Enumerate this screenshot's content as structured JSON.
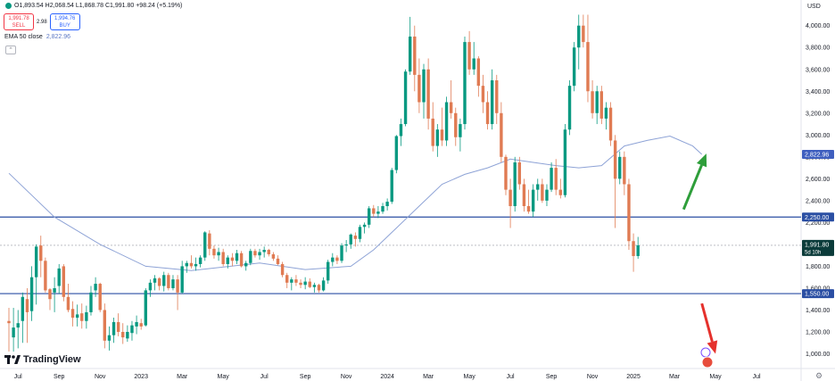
{
  "header": {
    "ohlc_text": "O1,893.54 H2,068.54 L1,868.78 C1,991.80 +98.24 (+5.19%)",
    "sell_price": "1,991.78",
    "sell_label": "SELL",
    "spread": "2.98",
    "buy_price": "1,994.76",
    "buy_label": "BUY",
    "ema_label": "EMA 50 close",
    "ema_value": "2,822.96",
    "collapse_glyph": "^"
  },
  "logo": {
    "text": "TradingView",
    "icon": "tradingview-logo-icon"
  },
  "settings_icon": "gear-icon",
  "colors": {
    "up": "#089981",
    "down": "#e07b53",
    "ema": "#8ea3d6",
    "hline": "#2a4ea3",
    "arrow_up": "#2e9e3a",
    "arrow_down": "#e5312c",
    "axis_text": "#131722"
  },
  "chart_data": {
    "type": "candlestick",
    "currency_label": "USD",
    "y_ticks": [
      "1,000.00",
      "1,200.00",
      "1,400.00",
      "1,600.00",
      "1,800.00",
      "2,000.00",
      "2,200.00",
      "2,400.00",
      "2,600.00",
      "2,800.00",
      "3,000.00",
      "3,200.00",
      "3,400.00",
      "3,600.00",
      "3,800.00",
      "4,000.00"
    ],
    "y_tick_values": [
      1000,
      1200,
      1400,
      1600,
      1800,
      2000,
      2200,
      2400,
      2600,
      2800,
      3000,
      3200,
      3400,
      3600,
      3800,
      4000
    ],
    "ylim": [
      890,
      4120
    ],
    "x_ticks": [
      {
        "label": "Jul",
        "index": 2
      },
      {
        "label": "Sep",
        "index": 11
      },
      {
        "label": "Nov",
        "index": 20
      },
      {
        "label": "2023",
        "index": 29
      },
      {
        "label": "Mar",
        "index": 38
      },
      {
        "label": "May",
        "index": 47
      },
      {
        "label": "Jul",
        "index": 56
      },
      {
        "label": "Sep",
        "index": 65
      },
      {
        "label": "Nov",
        "index": 74
      },
      {
        "label": "2024",
        "index": 83
      },
      {
        "label": "Mar",
        "index": 92
      },
      {
        "label": "May",
        "index": 101
      },
      {
        "label": "Jul",
        "index": 110
      },
      {
        "label": "Sep",
        "index": 119
      },
      {
        "label": "Nov",
        "index": 128
      },
      {
        "label": "2025",
        "index": 137
      },
      {
        "label": "Mar",
        "index": 146
      },
      {
        "label": "May",
        "index": 155
      },
      {
        "label": "Jul",
        "index": 164
      }
    ],
    "candles": [
      {
        "o": 1300,
        "h": 1420,
        "l": 1020,
        "c": 1280
      },
      {
        "o": 1150,
        "h": 1420,
        "l": 1020,
        "c": 1240
      },
      {
        "o": 1240,
        "h": 1400,
        "l": 1050,
        "c": 1280
      },
      {
        "o": 1300,
        "h": 1560,
        "l": 1100,
        "c": 1520
      },
      {
        "o": 1500,
        "h": 1600,
        "l": 1100,
        "c": 1380
      },
      {
        "o": 1390,
        "h": 1800,
        "l": 1300,
        "c": 1700
      },
      {
        "o": 1700,
        "h": 2000,
        "l": 1450,
        "c": 1980
      },
      {
        "o": 1990,
        "h": 2080,
        "l": 1700,
        "c": 1850
      },
      {
        "o": 1850,
        "h": 1880,
        "l": 1560,
        "c": 1580
      },
      {
        "o": 1590,
        "h": 1600,
        "l": 1400,
        "c": 1500
      },
      {
        "o": 1560,
        "h": 1700,
        "l": 1380,
        "c": 1600
      },
      {
        "o": 1620,
        "h": 1820,
        "l": 1550,
        "c": 1780
      },
      {
        "o": 1800,
        "h": 1820,
        "l": 1480,
        "c": 1520
      },
      {
        "o": 1520,
        "h": 1640,
        "l": 1380,
        "c": 1400
      },
      {
        "o": 1410,
        "h": 1480,
        "l": 1250,
        "c": 1330
      },
      {
        "o": 1330,
        "h": 1450,
        "l": 1250,
        "c": 1360
      },
      {
        "o": 1370,
        "h": 1460,
        "l": 1230,
        "c": 1300
      },
      {
        "o": 1300,
        "h": 1440,
        "l": 1230,
        "c": 1380
      },
      {
        "o": 1380,
        "h": 1620,
        "l": 1350,
        "c": 1560
      },
      {
        "o": 1580,
        "h": 1700,
        "l": 1520,
        "c": 1640
      },
      {
        "o": 1640,
        "h": 1650,
        "l": 1380,
        "c": 1400
      },
      {
        "o": 1400,
        "h": 1460,
        "l": 1050,
        "c": 1120
      },
      {
        "o": 1120,
        "h": 1250,
        "l": 1030,
        "c": 1170
      },
      {
        "o": 1170,
        "h": 1330,
        "l": 1100,
        "c": 1290
      },
      {
        "o": 1290,
        "h": 1370,
        "l": 1160,
        "c": 1200
      },
      {
        "o": 1200,
        "h": 1280,
        "l": 1090,
        "c": 1150
      },
      {
        "o": 1140,
        "h": 1260,
        "l": 1110,
        "c": 1200
      },
      {
        "o": 1190,
        "h": 1300,
        "l": 1120,
        "c": 1260
      },
      {
        "o": 1250,
        "h": 1350,
        "l": 1180,
        "c": 1290
      },
      {
        "o": 1280,
        "h": 1320,
        "l": 1220,
        "c": 1250
      },
      {
        "o": 1260,
        "h": 1600,
        "l": 1250,
        "c": 1580
      },
      {
        "o": 1580,
        "h": 1680,
        "l": 1520,
        "c": 1650
      },
      {
        "o": 1650,
        "h": 1720,
        "l": 1580,
        "c": 1690
      },
      {
        "o": 1690,
        "h": 1700,
        "l": 1580,
        "c": 1620
      },
      {
        "o": 1620,
        "h": 1750,
        "l": 1570,
        "c": 1720
      },
      {
        "o": 1720,
        "h": 1740,
        "l": 1580,
        "c": 1600
      },
      {
        "o": 1600,
        "h": 1720,
        "l": 1580,
        "c": 1680
      },
      {
        "o": 1680,
        "h": 1720,
        "l": 1400,
        "c": 1560
      },
      {
        "o": 1560,
        "h": 1850,
        "l": 1550,
        "c": 1800
      },
      {
        "o": 1800,
        "h": 1850,
        "l": 1740,
        "c": 1830
      },
      {
        "o": 1830,
        "h": 1900,
        "l": 1780,
        "c": 1800
      },
      {
        "o": 1800,
        "h": 1880,
        "l": 1760,
        "c": 1820
      },
      {
        "o": 1820,
        "h": 1900,
        "l": 1790,
        "c": 1880
      },
      {
        "o": 1880,
        "h": 2120,
        "l": 1850,
        "c": 2110
      },
      {
        "o": 2100,
        "h": 2130,
        "l": 1900,
        "c": 1960
      },
      {
        "o": 1960,
        "h": 1990,
        "l": 1870,
        "c": 1900
      },
      {
        "o": 1900,
        "h": 1970,
        "l": 1850,
        "c": 1930
      },
      {
        "o": 1930,
        "h": 1960,
        "l": 1800,
        "c": 1820
      },
      {
        "o": 1820,
        "h": 1900,
        "l": 1780,
        "c": 1880
      },
      {
        "o": 1880,
        "h": 1920,
        "l": 1800,
        "c": 1850
      },
      {
        "o": 1850,
        "h": 1950,
        "l": 1820,
        "c": 1920
      },
      {
        "o": 1920,
        "h": 1940,
        "l": 1790,
        "c": 1800
      },
      {
        "o": 1800,
        "h": 1850,
        "l": 1760,
        "c": 1830
      },
      {
        "o": 1830,
        "h": 1960,
        "l": 1810,
        "c": 1940
      },
      {
        "o": 1940,
        "h": 1960,
        "l": 1880,
        "c": 1900
      },
      {
        "o": 1900,
        "h": 1960,
        "l": 1860,
        "c": 1930
      },
      {
        "o": 1930,
        "h": 1980,
        "l": 1880,
        "c": 1950
      },
      {
        "o": 1950,
        "h": 1960,
        "l": 1890,
        "c": 1910
      },
      {
        "o": 1910,
        "h": 1930,
        "l": 1850,
        "c": 1870
      },
      {
        "o": 1870,
        "h": 1900,
        "l": 1810,
        "c": 1820
      },
      {
        "o": 1820,
        "h": 1840,
        "l": 1700,
        "c": 1720
      },
      {
        "o": 1720,
        "h": 1740,
        "l": 1600,
        "c": 1650
      },
      {
        "o": 1650,
        "h": 1700,
        "l": 1580,
        "c": 1680
      },
      {
        "o": 1680,
        "h": 1720,
        "l": 1620,
        "c": 1650
      },
      {
        "o": 1650,
        "h": 1680,
        "l": 1600,
        "c": 1630
      },
      {
        "o": 1630,
        "h": 1700,
        "l": 1590,
        "c": 1660
      },
      {
        "o": 1660,
        "h": 1690,
        "l": 1600,
        "c": 1610
      },
      {
        "o": 1610,
        "h": 1650,
        "l": 1560,
        "c": 1630
      },
      {
        "o": 1630,
        "h": 1640,
        "l": 1560,
        "c": 1580
      },
      {
        "o": 1580,
        "h": 1700,
        "l": 1570,
        "c": 1670
      },
      {
        "o": 1670,
        "h": 1860,
        "l": 1640,
        "c": 1840
      },
      {
        "o": 1840,
        "h": 1920,
        "l": 1800,
        "c": 1880
      },
      {
        "o": 1880,
        "h": 1900,
        "l": 1820,
        "c": 1850
      },
      {
        "o": 1850,
        "h": 2010,
        "l": 1830,
        "c": 1990
      },
      {
        "o": 1990,
        "h": 2040,
        "l": 1930,
        "c": 2000
      },
      {
        "o": 2000,
        "h": 2100,
        "l": 1960,
        "c": 2090
      },
      {
        "o": 2080,
        "h": 2110,
        "l": 1980,
        "c": 2050
      },
      {
        "o": 2050,
        "h": 2180,
        "l": 2020,
        "c": 2160
      },
      {
        "o": 2160,
        "h": 2200,
        "l": 2100,
        "c": 2180
      },
      {
        "o": 2180,
        "h": 2350,
        "l": 2150,
        "c": 2330
      },
      {
        "o": 2330,
        "h": 2360,
        "l": 2250,
        "c": 2280
      },
      {
        "o": 2280,
        "h": 2350,
        "l": 2240,
        "c": 2300
      },
      {
        "o": 2300,
        "h": 2380,
        "l": 2280,
        "c": 2350
      },
      {
        "o": 2350,
        "h": 2420,
        "l": 2310,
        "c": 2390
      },
      {
        "o": 2390,
        "h": 2700,
        "l": 2370,
        "c": 2680
      },
      {
        "o": 2680,
        "h": 3000,
        "l": 2650,
        "c": 2990
      },
      {
        "o": 2990,
        "h": 3150,
        "l": 2900,
        "c": 3100
      },
      {
        "o": 3100,
        "h": 3600,
        "l": 3080,
        "c": 3580
      },
      {
        "o": 3580,
        "h": 4080,
        "l": 3550,
        "c": 3900
      },
      {
        "o": 3900,
        "h": 4000,
        "l": 3400,
        "c": 3550
      },
      {
        "o": 3550,
        "h": 3700,
        "l": 3200,
        "c": 3300
      },
      {
        "o": 3300,
        "h": 3650,
        "l": 3150,
        "c": 3600
      },
      {
        "o": 3600,
        "h": 3700,
        "l": 3050,
        "c": 3150
      },
      {
        "o": 3150,
        "h": 3300,
        "l": 2850,
        "c": 2900
      },
      {
        "o": 2900,
        "h": 3100,
        "l": 2800,
        "c": 3050
      },
      {
        "o": 3050,
        "h": 3250,
        "l": 2900,
        "c": 2950
      },
      {
        "o": 2950,
        "h": 3350,
        "l": 2900,
        "c": 3300
      },
      {
        "o": 3300,
        "h": 3500,
        "l": 3150,
        "c": 3200
      },
      {
        "o": 3200,
        "h": 3250,
        "l": 2900,
        "c": 2980
      },
      {
        "o": 2980,
        "h": 3150,
        "l": 2850,
        "c": 3100
      },
      {
        "o": 3100,
        "h": 3900,
        "l": 3050,
        "c": 3850
      },
      {
        "o": 3850,
        "h": 3950,
        "l": 3550,
        "c": 3600
      },
      {
        "o": 3600,
        "h": 3850,
        "l": 3550,
        "c": 3700
      },
      {
        "o": 3700,
        "h": 3720,
        "l": 3350,
        "c": 3450
      },
      {
        "o": 3450,
        "h": 3550,
        "l": 3200,
        "c": 3300
      },
      {
        "o": 3300,
        "h": 3400,
        "l": 3050,
        "c": 3100
      },
      {
        "o": 3100,
        "h": 3600,
        "l": 3050,
        "c": 3500
      },
      {
        "o": 3500,
        "h": 3550,
        "l": 3100,
        "c": 3200
      },
      {
        "o": 3200,
        "h": 3300,
        "l": 2750,
        "c": 2800
      },
      {
        "o": 2800,
        "h": 2820,
        "l": 2450,
        "c": 2500
      },
      {
        "o": 2500,
        "h": 2600,
        "l": 2150,
        "c": 2350
      },
      {
        "o": 2350,
        "h": 2800,
        "l": 2300,
        "c": 2750
      },
      {
        "o": 2750,
        "h": 2800,
        "l": 2500,
        "c": 2550
      },
      {
        "o": 2550,
        "h": 2600,
        "l": 2300,
        "c": 2350
      },
      {
        "o": 2350,
        "h": 2500,
        "l": 2280,
        "c": 2300
      },
      {
        "o": 2300,
        "h": 2550,
        "l": 2250,
        "c": 2500
      },
      {
        "o": 2500,
        "h": 2600,
        "l": 2400,
        "c": 2550
      },
      {
        "o": 2550,
        "h": 2600,
        "l": 2380,
        "c": 2400
      },
      {
        "o": 2400,
        "h": 2550,
        "l": 2350,
        "c": 2500
      },
      {
        "o": 2500,
        "h": 2750,
        "l": 2480,
        "c": 2700
      },
      {
        "o": 2700,
        "h": 2780,
        "l": 2450,
        "c": 2500
      },
      {
        "o": 2500,
        "h": 2600,
        "l": 2420,
        "c": 2450
      },
      {
        "o": 2450,
        "h": 3100,
        "l": 2430,
        "c": 3050
      },
      {
        "o": 3050,
        "h": 3500,
        "l": 3000,
        "c": 3450
      },
      {
        "o": 3450,
        "h": 3850,
        "l": 3400,
        "c": 3800
      },
      {
        "o": 3800,
        "h": 4100,
        "l": 3600,
        "c": 4000
      },
      {
        "o": 4000,
        "h": 4100,
        "l": 3800,
        "c": 3850
      },
      {
        "o": 3850,
        "h": 4100,
        "l": 3300,
        "c": 3400
      },
      {
        "o": 3400,
        "h": 3500,
        "l": 3150,
        "c": 3200
      },
      {
        "o": 3200,
        "h": 3450,
        "l": 3100,
        "c": 3400
      },
      {
        "o": 3400,
        "h": 3450,
        "l": 3100,
        "c": 3150
      },
      {
        "o": 3150,
        "h": 3300,
        "l": 3050,
        "c": 3250
      },
      {
        "o": 3250,
        "h": 3300,
        "l": 2900,
        "c": 2950
      },
      {
        "o": 2950,
        "h": 3000,
        "l": 2150,
        "c": 2600
      },
      {
        "o": 2600,
        "h": 2850,
        "l": 2550,
        "c": 2800
      },
      {
        "o": 2800,
        "h": 2850,
        "l": 2450,
        "c": 2550
      },
      {
        "o": 2550,
        "h": 2600,
        "l": 1950,
        "c": 2030
      },
      {
        "o": 2030,
        "h": 2100,
        "l": 1750,
        "c": 1893.54
      },
      {
        "o": 1893.54,
        "h": 2068.54,
        "l": 1868.78,
        "c": 1991.8
      }
    ],
    "ema50": [
      [
        0,
        2650
      ],
      [
        10,
        2250
      ],
      [
        20,
        2000
      ],
      [
        30,
        1800
      ],
      [
        40,
        1760
      ],
      [
        55,
        1830
      ],
      [
        65,
        1770
      ],
      [
        75,
        1800
      ],
      [
        80,
        1950
      ],
      [
        85,
        2150
      ],
      [
        90,
        2350
      ],
      [
        95,
        2550
      ],
      [
        100,
        2640
      ],
      [
        105,
        2700
      ],
      [
        110,
        2780
      ],
      [
        115,
        2750
      ],
      [
        120,
        2720
      ],
      [
        125,
        2700
      ],
      [
        130,
        2720
      ],
      [
        135,
        2900
      ],
      [
        140,
        2950
      ],
      [
        145,
        2990
      ],
      [
        150,
        2900
      ],
      [
        152,
        2822.96
      ]
    ],
    "horizontal_lines": [
      {
        "value": 2250,
        "label": "2,250.00"
      },
      {
        "value": 1550,
        "label": "1,550.00"
      }
    ],
    "last_price_label": {
      "value": 1991.8,
      "price": "1,991.80",
      "countdown": "5d 10h"
    },
    "ema_price_label": {
      "value": 2822.96,
      "label": "2,822.96"
    },
    "arrows": [
      {
        "direction": "up",
        "from": [
          148,
          2320
        ],
        "to": [
          153,
          2830
        ]
      },
      {
        "direction": "down",
        "from": [
          152,
          1460
        ],
        "to": [
          155,
          1000
        ]
      }
    ]
  }
}
